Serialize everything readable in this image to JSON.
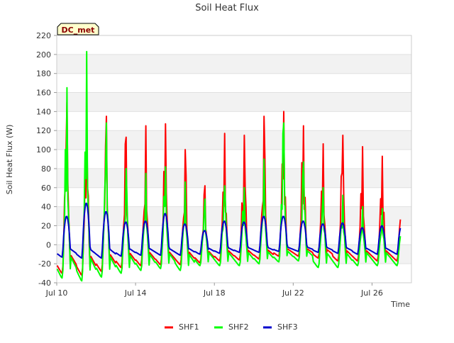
{
  "chart_data": {
    "type": "line",
    "title": "Soil Heat Flux",
    "xlabel": "Time",
    "ylabel": "Soil Heat Flux (W)",
    "site_badge": "DC_met",
    "ylim": [
      -40,
      220
    ],
    "yticks": [
      -40,
      -20,
      0,
      20,
      40,
      60,
      80,
      100,
      120,
      140,
      160,
      180,
      200,
      220
    ],
    "xlim": [
      "2024-07-10",
      "2024-07-28"
    ],
    "xticks": [
      {
        "label": "Jul 10",
        "day": 10
      },
      {
        "label": "Jul 14",
        "day": 14
      },
      {
        "label": "Jul 18",
        "day": 18
      },
      {
        "label": "Jul 22",
        "day": 22
      },
      {
        "label": "Jul 26",
        "day": 26
      }
    ],
    "grid": "horizontal alternating bands",
    "legend_position": "bottom-center",
    "series": [
      {
        "name": "SHF1",
        "color": "#ff0000",
        "daily_peak": [
          150,
          144,
          135,
          113,
          125,
          127,
          100,
          62,
          117,
          115,
          135,
          140,
          125,
          106,
          115,
          103,
          93
        ],
        "daily_min": [
          -30,
          -32,
          -28,
          -24,
          -22,
          -21,
          -21,
          -19,
          -17,
          -16,
          -15,
          -12,
          -12,
          -14,
          -17,
          -17,
          -17
        ]
      },
      {
        "name": "SHF2",
        "color": "#00ff00",
        "daily_peak": [
          165,
          203,
          128,
          80,
          75,
          82,
          66,
          48,
          62,
          60,
          90,
          128,
          87,
          60,
          52,
          40,
          38
        ],
        "daily_min": [
          -35,
          -38,
          -34,
          -30,
          -27,
          -25,
          -27,
          -22,
          -22,
          -22,
          -20,
          -18,
          -17,
          -24,
          -24,
          -22,
          -22
        ]
      },
      {
        "name": "SHF3",
        "color": "#0000cc",
        "daily_peak": [
          30,
          44,
          35,
          24,
          25,
          33,
          22,
          15,
          25,
          24,
          30,
          30,
          25,
          22,
          23,
          18,
          20
        ],
        "daily_min": [
          -13,
          -14,
          -14,
          -12,
          -11,
          -11,
          -11,
          -10,
          -9,
          -8,
          -8,
          -7,
          -7,
          -8,
          -9,
          -10,
          -10
        ]
      }
    ]
  }
}
